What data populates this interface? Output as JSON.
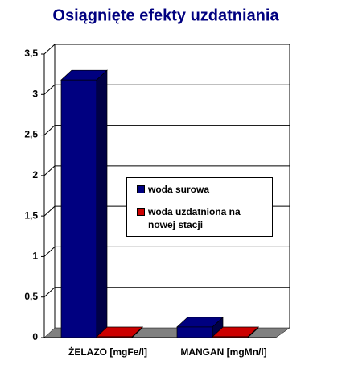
{
  "chart_data": {
    "type": "bar3d",
    "title": "Osiągnięte efekty uzdatniania",
    "categories": [
      "ŻELAZO [mgFe/l]",
      "MANGAN [mgMn/l]"
    ],
    "series": [
      {
        "name": "woda surowa",
        "color": "#000080",
        "values": [
          3.18,
          0.13
        ]
      },
      {
        "name": "woda uzdatniona na nowej stacji",
        "color": "#cc0000",
        "values": [
          0.01,
          0.01
        ]
      }
    ],
    "ylim": [
      0,
      3.5
    ],
    "yticks": [
      0,
      {
        "value": 0.5,
        "label": "0,5"
      },
      1,
      {
        "value": 1.5,
        "label": "1,5"
      },
      2,
      {
        "value": 2.5,
        "label": "2,5"
      },
      3,
      {
        "value": 3.5,
        "label": "3,5"
      }
    ],
    "grid": true
  }
}
